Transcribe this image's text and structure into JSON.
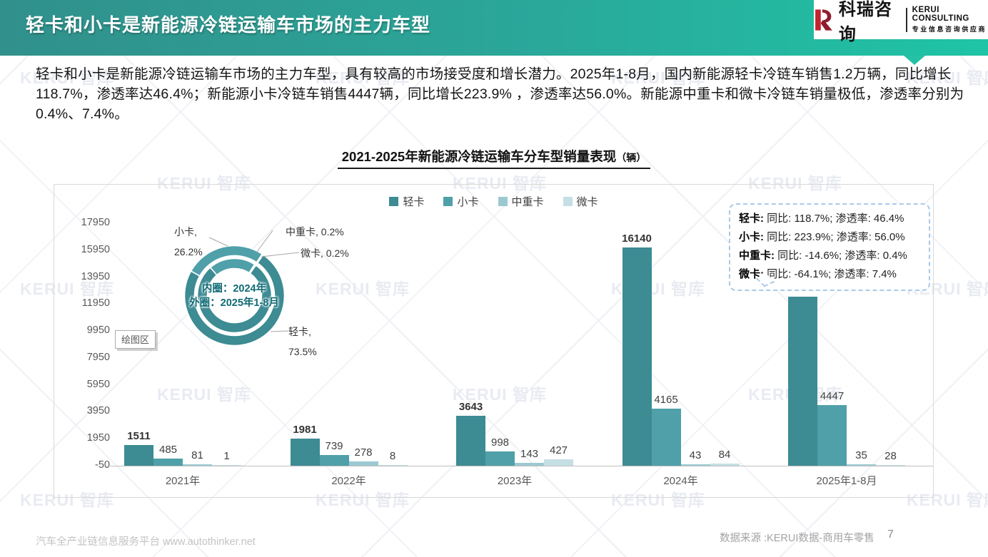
{
  "header": {
    "title": "轻卡和小卡是新能源冷链运输车市场的主力车型",
    "logo": {
      "cn": "科瑞咨询",
      "en": "KERUI CONSULTING",
      "tagline": "专业信息咨询供应商"
    }
  },
  "intro": "轻卡和小卡是新能源冷链运输车市场的主力车型，具有较高的市场接受度和增长潜力。2025年1-8月，国内新能源轻卡冷链车销售1.2万辆，同比增长118.7%，渗透率达46.4%；新能源小卡冷链车销售4447辆，同比增长223.9% ，渗透率达56.0%。新能源中重卡和微卡冷链车销量极低，渗透率分别为0.4%、7.4%。",
  "chart_title": {
    "main": "2021-2025年新能源冷链运输车分车型销量表现",
    "unit": "（辆）"
  },
  "chart_data": [
    {
      "type": "bar",
      "title": "2021-2025年新能源冷链运输车分车型销量表现（辆）",
      "categories": [
        "2021年",
        "2022年",
        "2023年",
        "2024年",
        "2025年1-8月"
      ],
      "series": [
        {
          "name": "轻卡",
          "color": "#3D8B93",
          "values": [
            1511,
            1981,
            3643,
            16140,
            12493
          ]
        },
        {
          "name": "小卡",
          "color": "#4FA0A9",
          "values": [
            485,
            739,
            998,
            4165,
            4447
          ]
        },
        {
          "name": "中重卡",
          "color": "#9CC9D1",
          "values": [
            81,
            278,
            143,
            43,
            35
          ]
        },
        {
          "name": "微卡",
          "color": "#C5DFE4",
          "values": [
            1,
            8,
            427,
            84,
            28
          ]
        }
      ],
      "ylim": [
        -50,
        17950
      ],
      "yticks": [
        17950,
        15950,
        13950,
        11950,
        9950,
        7950,
        5950,
        3950,
        1950,
        -50
      ],
      "legend_position": "top-center",
      "grid": false
    },
    {
      "type": "pie",
      "subtype": "double-ring-doughnut",
      "center_label": [
        "内圈：2024年",
        "外圈：2025年1-8月"
      ],
      "rings": [
        {
          "name": "2024年（内圈）",
          "categories": [
            "轻卡",
            "小卡",
            "中重卡",
            "微卡"
          ],
          "values": [
            16140,
            4165,
            43,
            84
          ]
        },
        {
          "name": "2025年1-8月（外圈）",
          "categories": [
            "轻卡",
            "小卡",
            "中重卡",
            "微卡"
          ],
          "values": [
            12493,
            4447,
            35,
            28
          ]
        }
      ],
      "shown_labels": [
        {
          "text_line1": "小卡,",
          "text_line2": "26.2%"
        },
        {
          "text_line1": "中重卡, 0.2%",
          "text_line2": ""
        },
        {
          "text_line1": "微卡, 0.2%",
          "text_line2": ""
        },
        {
          "text_line1": "轻卡,",
          "text_line2": "73.5%"
        }
      ]
    }
  ],
  "stats_box": {
    "lines": [
      {
        "name": "轻卡",
        "rest": " 同比: 118.7%; 渗透率: 46.4%"
      },
      {
        "name": "小卡",
        "rest": " 同比: 223.9%; 渗透率: 56.0%"
      },
      {
        "name": "中重卡",
        "rest": " 同比: -14.6%; 渗透率: 0.4%"
      },
      {
        "name": "微卡",
        "rest": " 同比: -64.1%; 渗透率: 7.4%"
      }
    ]
  },
  "plot_area_tooltip": "绘图区",
  "watermark_text": "KERUI 智库",
  "footer": {
    "left": "汽车全产业链信息服务平台 www.autothinker.net",
    "source": "数据来源 :KERUI数据-商用车零售",
    "page": "7"
  }
}
